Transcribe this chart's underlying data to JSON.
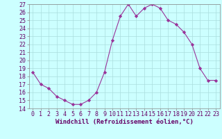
{
  "x": [
    0,
    1,
    2,
    3,
    4,
    5,
    6,
    7,
    8,
    9,
    10,
    11,
    12,
    13,
    14,
    15,
    16,
    17,
    18,
    19,
    20,
    21,
    22,
    23
  ],
  "y": [
    18.5,
    17.0,
    16.5,
    15.5,
    15.0,
    14.5,
    14.5,
    15.0,
    16.0,
    18.5,
    22.5,
    25.5,
    27.0,
    25.5,
    26.5,
    27.0,
    26.5,
    25.0,
    24.5,
    23.5,
    22.0,
    19.0,
    17.5,
    17.5
  ],
  "line_color": "#993399",
  "marker": "D",
  "marker_size": 2.2,
  "bg_color": "#ccffff",
  "grid_color": "#aadddd",
  "xlabel": "Windchill (Refroidissement éolien,°C)",
  "xlabel_fontsize": 6.5,
  "tick_fontsize": 6.0,
  "ylim": [
    14,
    27
  ],
  "xlim": [
    -0.5,
    23.5
  ],
  "yticks": [
    14,
    15,
    16,
    17,
    18,
    19,
    20,
    21,
    22,
    23,
    24,
    25,
    26,
    27
  ],
  "xticks": [
    0,
    1,
    2,
    3,
    4,
    5,
    6,
    7,
    8,
    9,
    10,
    11,
    12,
    13,
    14,
    15,
    16,
    17,
    18,
    19,
    20,
    21,
    22,
    23
  ],
  "tick_color": "#660066",
  "spine_color": "#888888"
}
